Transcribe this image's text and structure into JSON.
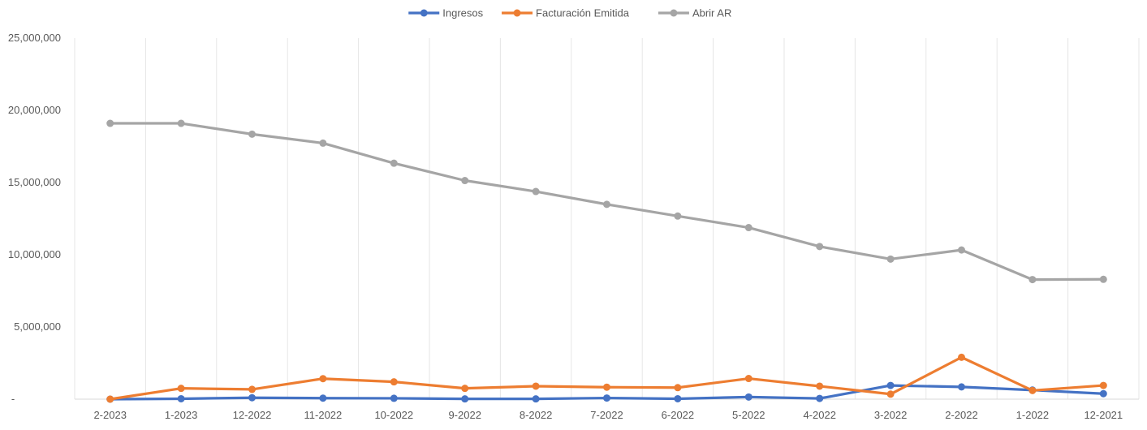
{
  "chart_data": {
    "type": "line",
    "title": "",
    "xlabel": "",
    "ylabel": "",
    "categories": [
      "2-2023",
      "1-2023",
      "12-2022",
      "11-2022",
      "10-2022",
      "9-2022",
      "8-2022",
      "7-2022",
      "6-2022",
      "5-2022",
      "4-2022",
      "3-2022",
      "2-2022",
      "1-2022",
      "12-2021"
    ],
    "ylim": [
      0,
      25000000
    ],
    "yticks": [
      0,
      5000000,
      10000000,
      15000000,
      20000000,
      25000000
    ],
    "ytick_labels": [
      "-",
      "5,000,000",
      "10,000,000",
      "15,000,000",
      "20,000,000",
      "25,000,000"
    ],
    "grid": {
      "vertical": true,
      "horizontal": false
    },
    "legend_position": "top-center",
    "series": [
      {
        "name": "Ingresos",
        "color": "#4472C4",
        "values": [
          0,
          30000,
          100000,
          70000,
          60000,
          20000,
          20000,
          80000,
          30000,
          150000,
          50000,
          950000,
          850000,
          630000,
          380000
        ]
      },
      {
        "name": "Facturación Emitida",
        "color": "#ED7D31",
        "values": [
          0,
          750000,
          680000,
          1420000,
          1200000,
          750000,
          900000,
          830000,
          800000,
          1430000,
          900000,
          350000,
          2900000,
          600000,
          950000
        ]
      },
      {
        "name": "Abrir AR",
        "color": "#A5A5A5",
        "values": [
          19100000,
          19100000,
          18350000,
          17730000,
          16340000,
          15140000,
          14380000,
          13490000,
          12680000,
          11880000,
          10570000,
          9700000,
          10330000,
          8280000,
          8300000
        ]
      }
    ]
  }
}
